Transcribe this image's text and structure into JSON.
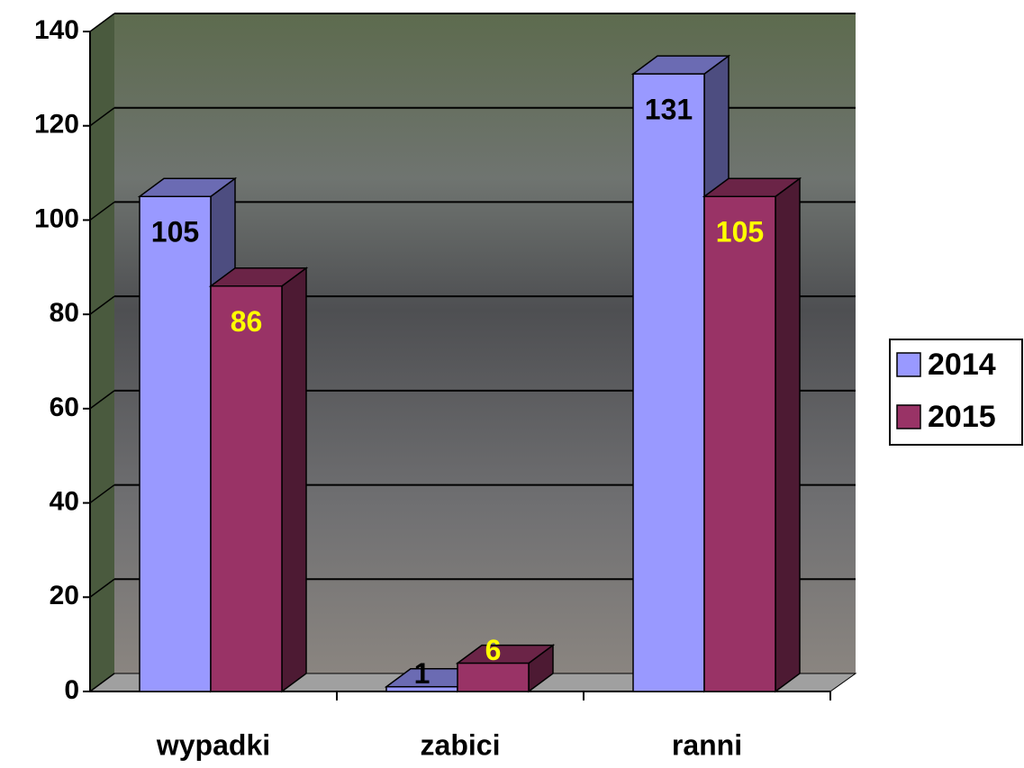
{
  "chart_data": {
    "type": "bar3d",
    "categories": [
      "wypadki",
      "zabici",
      "ranni"
    ],
    "series": [
      {
        "name": "2014",
        "color": "#9999ff",
        "values": [
          105,
          1,
          131
        ]
      },
      {
        "name": "2015",
        "color": "#993366",
        "values": [
          86,
          6,
          105
        ]
      }
    ],
    "ylim": [
      0,
      140
    ],
    "yticks": [
      0,
      20,
      40,
      60,
      80,
      100,
      120,
      140
    ],
    "grid": true,
    "legend": "right"
  }
}
